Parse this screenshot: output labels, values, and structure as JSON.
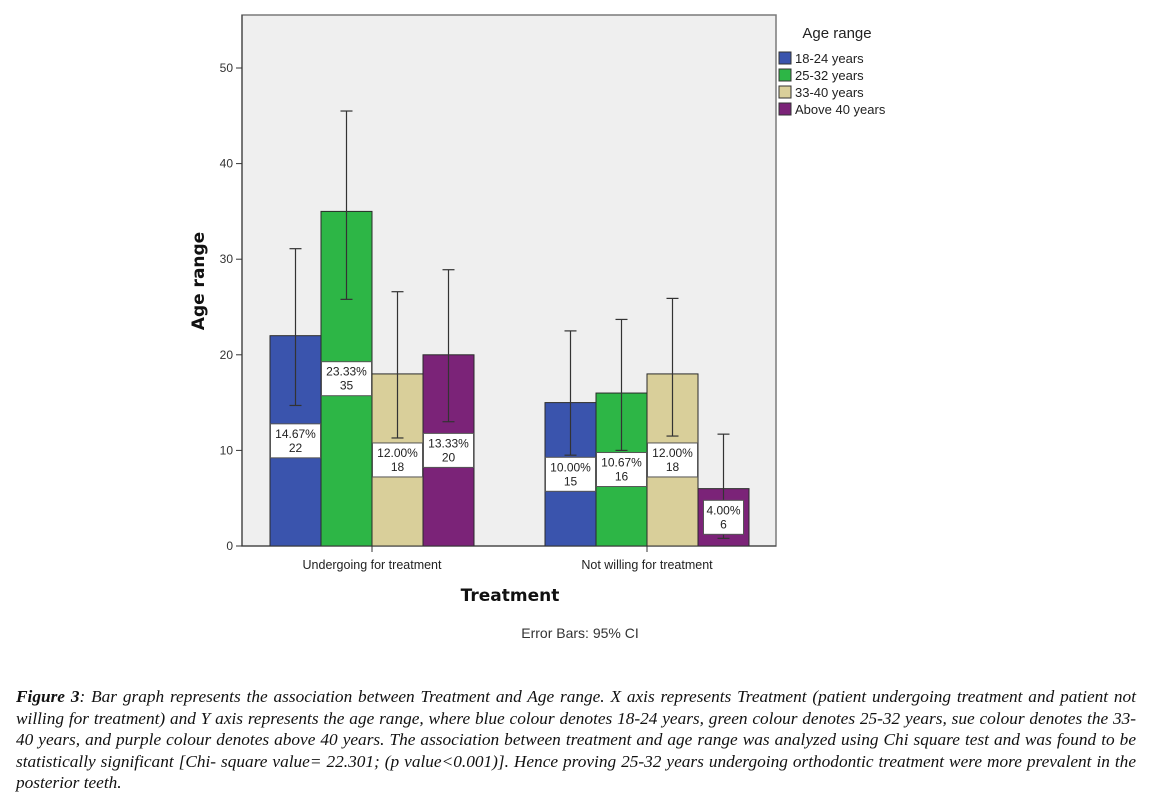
{
  "chart_data": {
    "type": "bar",
    "title": "",
    "xlabel": "Treatment",
    "ylabel": "Age range",
    "ylim": [
      0,
      50
    ],
    "yticks": [
      0,
      10,
      20,
      30,
      40,
      50
    ],
    "grid": false,
    "categories": [
      "Undergoing for treatment",
      "Not willing for treatment"
    ],
    "legend": {
      "title": "Age range",
      "placement": "top-right-outside"
    },
    "series": [
      {
        "name": "18-24 years",
        "color": "#3a54ad",
        "values": [
          22,
          15
        ],
        "percent_labels": [
          "14.67%",
          "10.00%"
        ],
        "count_labels": [
          "22",
          "15"
        ],
        "ci_low": [
          14.7,
          9.5
        ],
        "ci_high": [
          31.1,
          22.5
        ]
      },
      {
        "name": "25-32 years",
        "color": "#2db646",
        "values": [
          35,
          16
        ],
        "percent_labels": [
          "23.33%",
          "10.67%"
        ],
        "count_labels": [
          "35",
          "16"
        ],
        "ci_low": [
          25.8,
          10.0
        ],
        "ci_high": [
          45.5,
          23.7
        ]
      },
      {
        "name": "33-40 years",
        "color": "#d9cf9a",
        "values": [
          18,
          18
        ],
        "percent_labels": [
          "12.00%",
          "12.00%"
        ],
        "count_labels": [
          "18",
          "18"
        ],
        "ci_low": [
          11.3,
          11.5
        ],
        "ci_high": [
          26.6,
          25.9
        ]
      },
      {
        "name": "Above 40 years",
        "color": "#7b2378",
        "values": [
          20,
          6
        ],
        "percent_labels": [
          "13.33%",
          "4.00%"
        ],
        "count_labels": [
          "20",
          "6"
        ],
        "ci_low": [
          13.0,
          0.8
        ],
        "ci_high": [
          28.9,
          11.7
        ]
      }
    ],
    "annotations": [
      "Error Bars: 95% CI"
    ]
  },
  "caption": {
    "label": "Figure 3",
    "text": ": Bar graph represents the association between Treatment and Age range. X axis represents Treatment (patient undergoing treatment and patient not willing for treatment) and Y axis represents the age range, where blue colour denotes 18-24 years, green colour denotes 25-32 years, sue colour denotes the 33-40 years, and purple colour denotes above 40 years. The association between treatment and age range was analyzed using Chi square test and was found to be statistically significant [Chi- square value= 22.301; (p value<0.001)]. Hence proving 25-32 years undergoing orthodontic treatment were more prevalent in the posterior teeth."
  }
}
